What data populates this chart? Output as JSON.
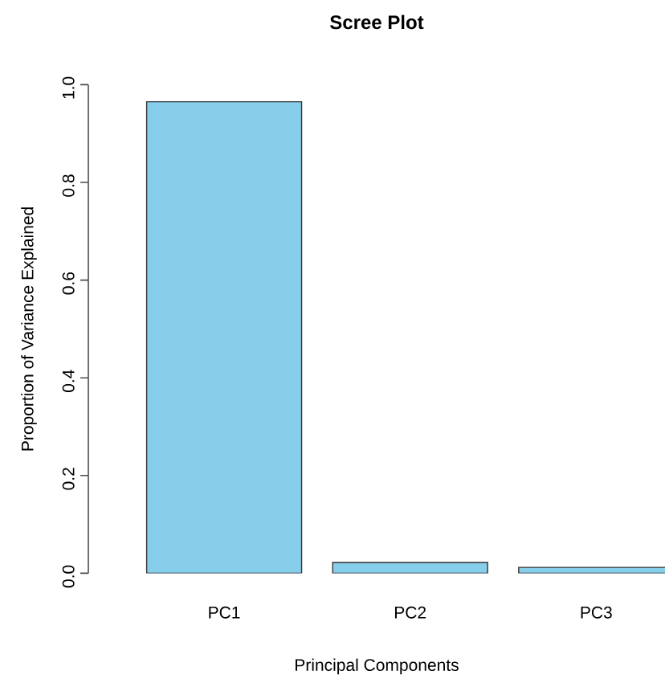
{
  "chart_data": {
    "type": "bar",
    "title": "Scree Plot",
    "xlabel": "Principal Components",
    "ylabel": "Proportion of Variance Explained",
    "categories": [
      "PC1",
      "PC2",
      "PC3"
    ],
    "values": [
      0.965,
      0.022,
      0.012
    ],
    "color": "#87ceeb",
    "ylim": [
      0,
      1
    ],
    "yticks": [
      {
        "value": 0,
        "label": "0.0"
      },
      0.2,
      0.4,
      0.6,
      0.8,
      {
        "value": 1,
        "label": "1.0"
      }
    ]
  }
}
